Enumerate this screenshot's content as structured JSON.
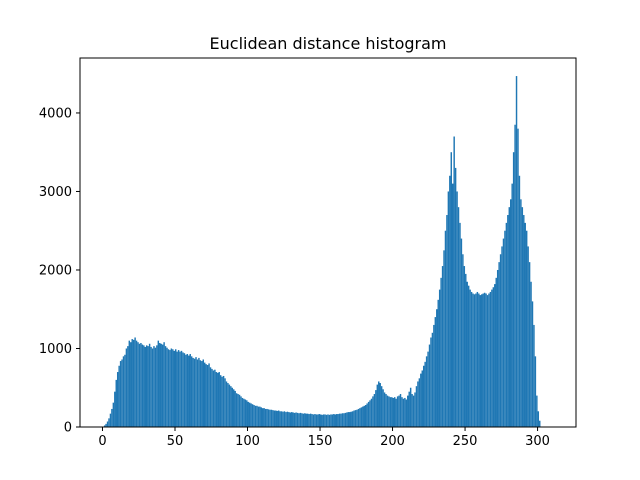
{
  "chart_data": {
    "type": "bar",
    "title": "Euclidean distance histogram",
    "xlabel": "",
    "ylabel": "",
    "xlim": [
      -15.5,
      326.5
    ],
    "ylim": [
      0,
      4700
    ],
    "x_ticks": [
      0,
      50,
      100,
      150,
      200,
      250,
      300
    ],
    "y_ticks": [
      0,
      1000,
      2000,
      3000,
      4000
    ],
    "grid": false,
    "legend": "none",
    "bar_color": "#1f77b4",
    "bins": {
      "start": 0,
      "width": 1,
      "counts": [
        5,
        20,
        40,
        70,
        110,
        170,
        230,
        310,
        450,
        600,
        700,
        780,
        840,
        860,
        900,
        920,
        1000,
        1030,
        1100,
        1080,
        1120,
        1110,
        1140,
        1100,
        1080,
        1060,
        1070,
        1050,
        1040,
        1020,
        1040,
        1030,
        1060,
        1020,
        1000,
        1030,
        1010,
        1040,
        1100,
        1070,
        1060,
        1050,
        1080,
        1030,
        1010,
        990,
        980,
        1000,
        990,
        970,
        990,
        960,
        980,
        960,
        970,
        950,
        940,
        920,
        930,
        910,
        930,
        900,
        880,
        870,
        890,
        860,
        880,
        850,
        840,
        860,
        820,
        800,
        790,
        810,
        760,
        740,
        720,
        730,
        700,
        690,
        700,
        660,
        640,
        650,
        620,
        580,
        560,
        540,
        520,
        500,
        480,
        460,
        430,
        420,
        410,
        390,
        370,
        360,
        350,
        340,
        320,
        310,
        300,
        290,
        280,
        270,
        270,
        260,
        260,
        250,
        240,
        240,
        230,
        230,
        225,
        220,
        220,
        215,
        210,
        210,
        205,
        210,
        200,
        200,
        195,
        200,
        190,
        195,
        190,
        185,
        190,
        185,
        180,
        185,
        180,
        175,
        180,
        175,
        170,
        175,
        170,
        170,
        165,
        170,
        165,
        160,
        165,
        160,
        160,
        165,
        160,
        155,
        160,
        160,
        155,
        160,
        155,
        160,
        160,
        165,
        160,
        165,
        165,
        170,
        170,
        175,
        175,
        180,
        185,
        190,
        190,
        195,
        200,
        210,
        215,
        220,
        230,
        240,
        250,
        260,
        270,
        280,
        300,
        320,
        340,
        360,
        390,
        420,
        470,
        540,
        580,
        560,
        520,
        480,
        440,
        420,
        400,
        390,
        380,
        380,
        370,
        380,
        360,
        390,
        400,
        420,
        380,
        360,
        370,
        350,
        400,
        450,
        500,
        420,
        400,
        440,
        520,
        580,
        620,
        680,
        720,
        780,
        830,
        900,
        960,
        1050,
        1140,
        1200,
        1300,
        1400,
        1500,
        1620,
        1750,
        1900,
        2050,
        2250,
        2500,
        2700,
        3000,
        3200,
        3500,
        3100,
        3700,
        3300,
        3000,
        2800,
        2600,
        2400,
        2200,
        2050,
        1950,
        1850,
        1800,
        1750,
        1720,
        1700,
        1690,
        1700,
        1720,
        1700,
        1680,
        1690,
        1700,
        1710,
        1700,
        1680,
        1700,
        1720,
        1750,
        1780,
        1820,
        1900,
        2000,
        2100,
        2200,
        2300,
        2400,
        2500,
        2600,
        2700,
        2800,
        2900,
        3100,
        3500,
        3850,
        4470,
        3800,
        3200,
        2900,
        2800,
        2700,
        2600,
        2500,
        2300,
        2100,
        1850,
        1600,
        1300,
        900,
        400,
        200,
        80
      ]
    }
  }
}
